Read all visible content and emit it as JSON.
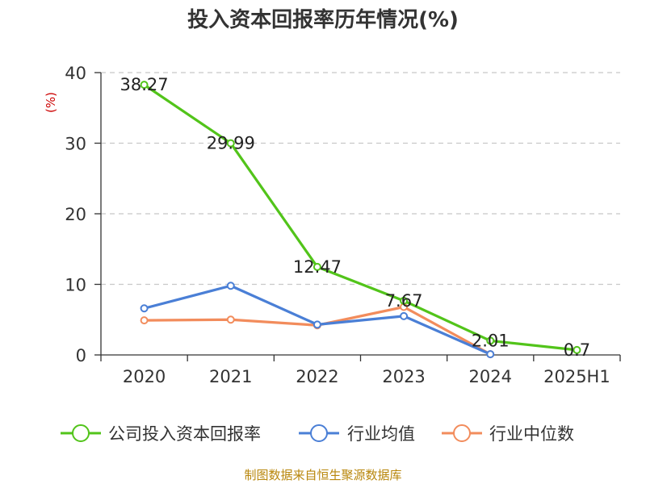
{
  "title": "投入资本回报率历年情况(%)",
  "y_unit": "(%)",
  "source": "制图数据来自恒生聚源数据库",
  "chart_data": {
    "type": "line",
    "categories": [
      "2020",
      "2021",
      "2022",
      "2023",
      "2024",
      "2025H1"
    ],
    "ylim": [
      0,
      40
    ],
    "yticks": [
      0,
      10,
      20,
      30,
      40
    ],
    "grid": true,
    "legend_position": "bottom",
    "series": [
      {
        "name": "公司投入资本回报率",
        "color": "#52c41a",
        "values": [
          38.27,
          29.99,
          12.47,
          7.67,
          2.01,
          0.7
        ],
        "labels": [
          "38.27",
          "29.99",
          "12.47",
          "7.67",
          "2.01",
          "0.7"
        ]
      },
      {
        "name": "行业均值",
        "color": "#4a7fd6",
        "values": [
          6.6,
          9.8,
          4.3,
          5.5,
          0.1,
          null
        ]
      },
      {
        "name": "行业中位数",
        "color": "#f28c5c",
        "values": [
          4.9,
          5.0,
          4.2,
          6.8,
          0.1,
          null
        ]
      }
    ]
  }
}
